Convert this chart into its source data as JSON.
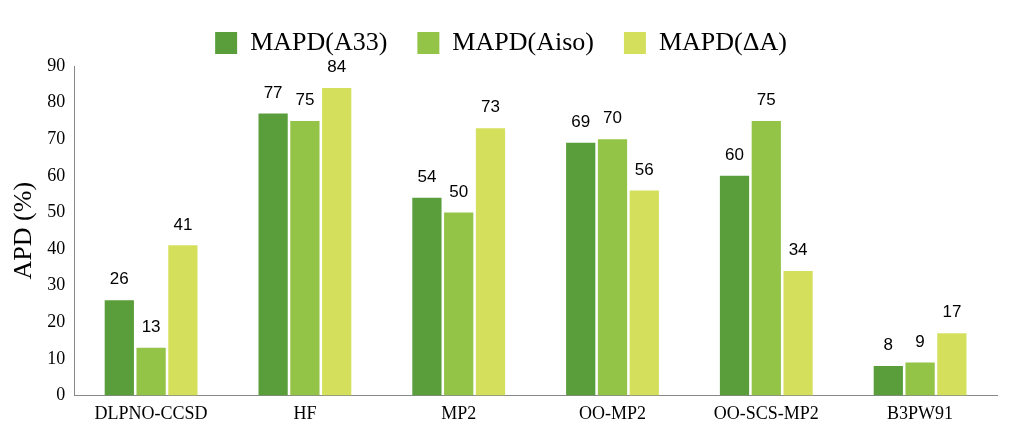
{
  "chart_data": {
    "type": "bar",
    "ylabel": "APD (%)",
    "categories": [
      "DLPNO-CCSD",
      "HF",
      "MP2",
      "OO-MP2",
      "OO-SCS-MP2",
      "B3PW91"
    ],
    "series": [
      {
        "name": "MAPD(A33)",
        "color": "#5a9e3c",
        "values": [
          26,
          77,
          54,
          69,
          60,
          8
        ]
      },
      {
        "name": "MAPD(Aiso)",
        "color": "#93c447",
        "values": [
          13,
          75,
          50,
          70,
          75,
          9
        ]
      },
      {
        "name": "MAPD(ΔA)",
        "color": "#d4e05c",
        "values": [
          41,
          84,
          73,
          56,
          34,
          17
        ]
      }
    ],
    "ylim": [
      0,
      90
    ],
    "yticks": [
      0,
      10,
      20,
      30,
      40,
      50,
      60,
      70,
      80,
      90
    ],
    "grid": false,
    "legend": "top",
    "data_labels": true
  }
}
